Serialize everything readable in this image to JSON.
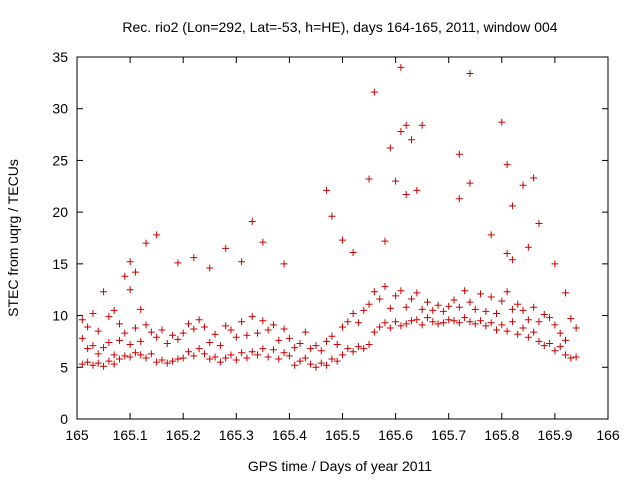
{
  "chart_data": {
    "type": "scatter",
    "title": "Rec. rio2 (Lon=292, Lat=-53, h=HE), days 164-165, 2011, window 004",
    "xlabel": "GPS time / Days of year 2011",
    "ylabel": "STEC from uqrg / TECUs",
    "xlim": [
      165,
      166
    ],
    "ylim": [
      0,
      35
    ],
    "x_ticks": [
      "165",
      "165.1",
      "165.2",
      "165.3",
      "165.4",
      "165.5",
      "165.6",
      "165.7",
      "165.8",
      "165.9",
      "166"
    ],
    "y_ticks": [
      "0",
      "5",
      "10",
      "15",
      "20",
      "25",
      "30",
      "35"
    ],
    "grid": false,
    "legend": "none",
    "marker": "plus",
    "color": "#cc0000",
    "series": [
      {
        "name": "STEC",
        "x": [
          165.01,
          165.01,
          165.01,
          165.02,
          165.02,
          165.02,
          165.03,
          165.03,
          165.03,
          165.04,
          165.04,
          165.04,
          165.05,
          165.05,
          165.05,
          165.06,
          165.06,
          165.06,
          165.07,
          165.07,
          165.07,
          165.08,
          165.08,
          165.08,
          165.09,
          165.09,
          165.09,
          165.1,
          165.1,
          165.1,
          165.11,
          165.11,
          165.11,
          165.12,
          165.12,
          165.12,
          165.13,
          165.13,
          165.14,
          165.14,
          165.15,
          165.15,
          165.16,
          165.16,
          165.17,
          165.17,
          165.18,
          165.18,
          165.19,
          165.19,
          165.2,
          165.2,
          165.21,
          165.21,
          165.22,
          165.22,
          165.23,
          165.23,
          165.24,
          165.24,
          165.25,
          165.25,
          165.26,
          165.26,
          165.27,
          165.27,
          165.28,
          165.28,
          165.29,
          165.29,
          165.3,
          165.3,
          165.31,
          165.31,
          165.32,
          165.32,
          165.33,
          165.33,
          165.34,
          165.34,
          165.35,
          165.35,
          165.36,
          165.36,
          165.37,
          165.37,
          165.38,
          165.38,
          165.39,
          165.39,
          165.4,
          165.4,
          165.41,
          165.41,
          165.42,
          165.42,
          165.43,
          165.43,
          165.44,
          165.44,
          165.45,
          165.45,
          165.46,
          165.46,
          165.47,
          165.47,
          165.48,
          165.48,
          165.49,
          165.49,
          165.5,
          165.5,
          165.51,
          165.51,
          165.52,
          165.52,
          165.53,
          165.53,
          165.54,
          165.54,
          165.55,
          165.55,
          165.56,
          165.56,
          165.57,
          165.57,
          165.58,
          165.58,
          165.59,
          165.59,
          165.6,
          165.6,
          165.61,
          165.61,
          165.62,
          165.62,
          165.63,
          165.63,
          165.64,
          165.64,
          165.65,
          165.65,
          165.66,
          165.66,
          165.67,
          165.67,
          165.68,
          165.68,
          165.69,
          165.69,
          165.7,
          165.7,
          165.71,
          165.71,
          165.72,
          165.72,
          165.73,
          165.73,
          165.74,
          165.74,
          165.75,
          165.75,
          165.76,
          165.76,
          165.77,
          165.77,
          165.78,
          165.78,
          165.79,
          165.79,
          165.8,
          165.8,
          165.81,
          165.81,
          165.82,
          165.82,
          165.83,
          165.83,
          165.84,
          165.84,
          165.85,
          165.85,
          165.86,
          165.86,
          165.87,
          165.87,
          165.88,
          165.88,
          165.89,
          165.89,
          165.9,
          165.9,
          165.91,
          165.91,
          165.92,
          165.92,
          165.93,
          165.93,
          165.94,
          165.94,
          165.1,
          165.13,
          165.15,
          165.19,
          165.22,
          165.25,
          165.28,
          165.31,
          165.33,
          165.35,
          165.39,
          165.47,
          165.48,
          165.5,
          165.52,
          165.56,
          165.58,
          165.59,
          165.61,
          165.62,
          165.63,
          165.65,
          165.72,
          165.74,
          165.78,
          165.8,
          165.81,
          165.82,
          165.84,
          165.86,
          165.87,
          165.9,
          165.92,
          165.61,
          165.62,
          165.6,
          165.55,
          165.74,
          165.81,
          165.85,
          165.72,
          165.82,
          165.64
        ],
        "y": [
          5.3,
          7.8,
          9.6,
          5.5,
          6.8,
          8.9,
          5.2,
          7.1,
          10.2,
          5.4,
          6.3,
          8.5,
          5.1,
          6.9,
          12.3,
          5.6,
          7.4,
          9.9,
          5.3,
          6.2,
          10.5,
          5.8,
          7.6,
          9.2,
          6.1,
          8.3,
          13.8,
          6.0,
          7.2,
          12.5,
          6.4,
          8.8,
          14.2,
          6.2,
          7.5,
          10.6,
          5.9,
          9.1,
          6.3,
          8.4,
          5.5,
          7.9,
          5.7,
          8.6,
          5.4,
          7.3,
          5.6,
          8.1,
          5.8,
          7.7,
          5.9,
          8.3,
          6.5,
          9.2,
          6.1,
          8.7,
          6.8,
          9.6,
          6.3,
          8.9,
          5.8,
          7.4,
          6.0,
          8.2,
          5.5,
          7.1,
          5.9,
          9.0,
          6.2,
          8.6,
          5.7,
          7.9,
          6.4,
          9.4,
          5.9,
          8.1,
          6.5,
          9.9,
          6.2,
          8.3,
          6.8,
          9.5,
          6.0,
          8.6,
          6.7,
          9.1,
          5.8,
          7.6,
          6.4,
          8.7,
          6.1,
          7.8,
          5.2,
          6.9,
          5.6,
          7.3,
          5.9,
          8.4,
          5.3,
          6.8,
          5.0,
          7.1,
          5.4,
          6.6,
          5.2,
          7.5,
          5.8,
          8.0,
          5.6,
          7.2,
          6.2,
          8.9,
          6.8,
          9.4,
          6.5,
          10.2,
          7.0,
          9.3,
          6.8,
          10.5,
          7.2,
          11.1,
          8.4,
          12.3,
          8.9,
          11.6,
          9.3,
          12.8,
          8.8,
          10.7,
          9.4,
          11.9,
          9.0,
          12.4,
          9.2,
          10.8,
          9.5,
          11.6,
          9.6,
          12.2,
          9.1,
          10.6,
          9.8,
          11.3,
          9.4,
          10.5,
          9.2,
          11.0,
          9.3,
          10.4,
          9.6,
          10.9,
          9.5,
          11.5,
          9.3,
          10.8,
          9.8,
          12.4,
          9.4,
          11.3,
          9.2,
          10.6,
          9.5,
          12.1,
          9.0,
          10.4,
          9.3,
          11.8,
          8.6,
          10.2,
          9.1,
          11.4,
          8.5,
          12.3,
          9.4,
          10.6,
          8.2,
          11.1,
          8.8,
          10.5,
          7.9,
          9.6,
          8.4,
          10.8,
          7.5,
          9.4,
          7.1,
          10.1,
          7.3,
          9.8,
          6.6,
          9.1,
          7.0,
          8.3,
          6.2,
          7.6,
          5.9,
          9.7,
          6.0,
          8.8,
          15.2,
          17.0,
          17.8,
          15.1,
          15.6,
          14.6,
          16.5,
          15.2,
          19.1,
          17.1,
          15.0,
          22.1,
          19.6,
          17.3,
          16.1,
          31.6,
          17.2,
          26.2,
          27.8,
          28.4,
          27.0,
          28.4,
          25.6,
          33.4,
          17.8,
          28.7,
          24.6,
          20.6,
          22.6,
          23.3,
          18.9,
          15.0,
          12.2,
          34.0,
          21.7,
          23.0,
          23.2,
          22.8,
          16.0,
          16.6,
          21.3,
          15.4,
          22.1
        ]
      }
    ]
  }
}
